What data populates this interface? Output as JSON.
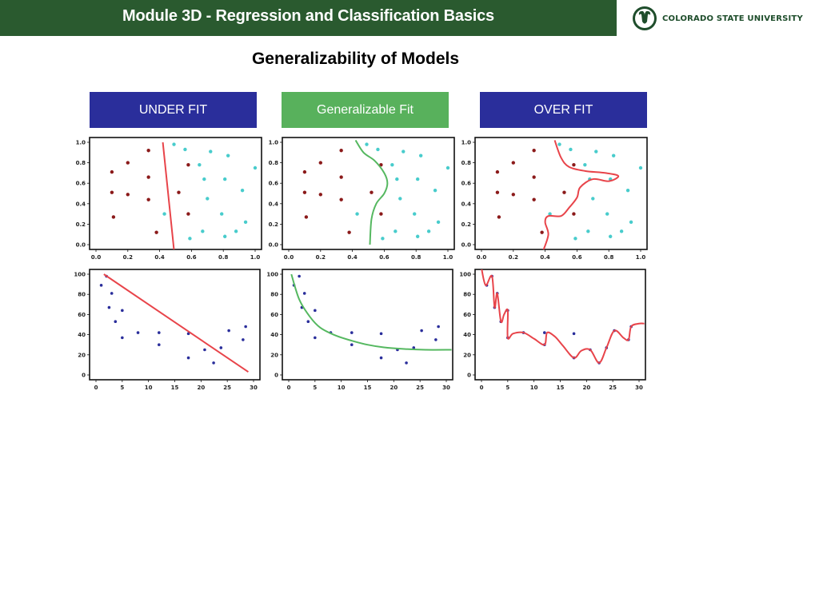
{
  "header": {
    "module_title": "Module  3D - Regression and Classification Basics"
  },
  "logo": {
    "text": "COLORADO STATE UNIVERSITY",
    "icon": "ram-head-icon",
    "color": "#1e4d2b"
  },
  "slide": {
    "title": "Generalizability of Models"
  },
  "labels": [
    {
      "text": "UNDER FIT",
      "color": "#2a2e9b"
    },
    {
      "text": "Generalizable Fit",
      "color": "#58b15c"
    },
    {
      "text": "OVER FIT",
      "color": "#2a2e9b"
    }
  ],
  "chart_data": [
    {
      "type": "scatter",
      "title": "",
      "xlabel": "",
      "ylabel": "",
      "xlim": [
        0,
        1
      ],
      "ylim": [
        0,
        1
      ],
      "xticks": [
        0.0,
        0.2,
        0.4,
        0.6,
        0.8,
        1.0
      ],
      "yticks": [
        0.0,
        0.2,
        0.4,
        0.6,
        0.8,
        1.0
      ],
      "series": [
        {
          "color": "#8b1a1a",
          "points": [
            [
              0.1,
              0.71
            ],
            [
              0.1,
              0.51
            ],
            [
              0.11,
              0.27
            ],
            [
              0.2,
              0.8
            ],
            [
              0.2,
              0.49
            ],
            [
              0.33,
              0.92
            ],
            [
              0.33,
              0.66
            ],
            [
              0.33,
              0.44
            ],
            [
              0.38,
              0.12
            ],
            [
              0.52,
              0.51
            ],
            [
              0.58,
              0.78
            ],
            [
              0.58,
              0.3
            ]
          ]
        },
        {
          "color": "#48cccc",
          "points": [
            [
              0.43,
              0.3
            ],
            [
              0.49,
              0.98
            ],
            [
              0.56,
              0.93
            ],
            [
              0.59,
              0.06
            ],
            [
              0.65,
              0.78
            ],
            [
              0.67,
              0.13
            ],
            [
              0.68,
              0.64
            ],
            [
              0.7,
              0.45
            ],
            [
              0.72,
              0.91
            ],
            [
              0.79,
              0.3
            ],
            [
              0.81,
              0.08
            ],
            [
              0.81,
              0.64
            ],
            [
              0.83,
              0.87
            ],
            [
              0.88,
              0.13
            ],
            [
              0.92,
              0.53
            ],
            [
              0.94,
              0.22
            ],
            [
              1.0,
              0.75
            ]
          ]
        }
      ],
      "fit_line": {
        "color": "#e8444a",
        "points": [
          [
            0.42,
            1.0
          ],
          [
            0.49,
            -0.05
          ]
        ]
      }
    },
    {
      "type": "scatter",
      "title": "",
      "xlabel": "",
      "ylabel": "",
      "xlim": [
        0,
        1
      ],
      "ylim": [
        0,
        1
      ],
      "xticks": [
        0.0,
        0.2,
        0.4,
        0.6,
        0.8,
        1.0
      ],
      "yticks": [
        0.0,
        0.2,
        0.4,
        0.6,
        0.8,
        1.0
      ],
      "series": [
        {
          "color": "#8b1a1a",
          "points": [
            [
              0.1,
              0.71
            ],
            [
              0.1,
              0.51
            ],
            [
              0.11,
              0.27
            ],
            [
              0.2,
              0.8
            ],
            [
              0.2,
              0.49
            ],
            [
              0.33,
              0.92
            ],
            [
              0.33,
              0.66
            ],
            [
              0.33,
              0.44
            ],
            [
              0.38,
              0.12
            ],
            [
              0.52,
              0.51
            ],
            [
              0.58,
              0.78
            ],
            [
              0.58,
              0.3
            ]
          ]
        },
        {
          "color": "#48cccc",
          "points": [
            [
              0.43,
              0.3
            ],
            [
              0.49,
              0.98
            ],
            [
              0.56,
              0.93
            ],
            [
              0.59,
              0.06
            ],
            [
              0.65,
              0.78
            ],
            [
              0.67,
              0.13
            ],
            [
              0.68,
              0.64
            ],
            [
              0.7,
              0.45
            ],
            [
              0.72,
              0.91
            ],
            [
              0.79,
              0.3
            ],
            [
              0.81,
              0.08
            ],
            [
              0.81,
              0.64
            ],
            [
              0.83,
              0.87
            ],
            [
              0.88,
              0.13
            ],
            [
              0.92,
              0.53
            ],
            [
              0.94,
              0.22
            ],
            [
              1.0,
              0.75
            ]
          ]
        }
      ],
      "fit_line": {
        "color": "#55b860",
        "points": [
          [
            0.42,
            1.02
          ],
          [
            0.47,
            0.9
          ],
          [
            0.54,
            0.82
          ],
          [
            0.6,
            0.7
          ],
          [
            0.62,
            0.6
          ],
          [
            0.6,
            0.5
          ],
          [
            0.55,
            0.4
          ],
          [
            0.52,
            0.25
          ],
          [
            0.51,
            0.0
          ]
        ]
      }
    },
    {
      "type": "scatter",
      "title": "",
      "xlabel": "",
      "ylabel": "",
      "xlim": [
        0,
        1
      ],
      "ylim": [
        0,
        1
      ],
      "xticks": [
        0.0,
        0.2,
        0.4,
        0.6,
        0.8,
        1.0
      ],
      "yticks": [
        0.0,
        0.2,
        0.4,
        0.6,
        0.8,
        1.0
      ],
      "series": [
        {
          "color": "#8b1a1a",
          "points": [
            [
              0.1,
              0.71
            ],
            [
              0.1,
              0.51
            ],
            [
              0.11,
              0.27
            ],
            [
              0.2,
              0.8
            ],
            [
              0.2,
              0.49
            ],
            [
              0.33,
              0.92
            ],
            [
              0.33,
              0.66
            ],
            [
              0.33,
              0.44
            ],
            [
              0.38,
              0.12
            ],
            [
              0.52,
              0.51
            ],
            [
              0.58,
              0.78
            ],
            [
              0.58,
              0.3
            ]
          ]
        },
        {
          "color": "#48cccc",
          "points": [
            [
              0.43,
              0.3
            ],
            [
              0.49,
              0.98
            ],
            [
              0.56,
              0.93
            ],
            [
              0.59,
              0.06
            ],
            [
              0.65,
              0.78
            ],
            [
              0.67,
              0.13
            ],
            [
              0.68,
              0.64
            ],
            [
              0.7,
              0.45
            ],
            [
              0.72,
              0.91
            ],
            [
              0.79,
              0.3
            ],
            [
              0.81,
              0.08
            ],
            [
              0.81,
              0.64
            ],
            [
              0.83,
              0.87
            ],
            [
              0.88,
              0.13
            ],
            [
              0.92,
              0.53
            ],
            [
              0.94,
              0.22
            ],
            [
              1.0,
              0.75
            ]
          ]
        }
      ],
      "fit_line": {
        "color": "#e8444a",
        "points": [
          [
            0.46,
            1.02
          ],
          [
            0.5,
            0.85
          ],
          [
            0.55,
            0.76
          ],
          [
            0.65,
            0.72
          ],
          [
            0.78,
            0.7
          ],
          [
            0.86,
            0.67
          ],
          [
            0.8,
            0.62
          ],
          [
            0.7,
            0.64
          ],
          [
            0.62,
            0.56
          ],
          [
            0.6,
            0.46
          ],
          [
            0.55,
            0.36
          ],
          [
            0.5,
            0.28
          ],
          [
            0.42,
            0.28
          ],
          [
            0.4,
            0.22
          ],
          [
            0.42,
            0.1
          ],
          [
            0.39,
            -0.05
          ]
        ]
      }
    },
    {
      "type": "scatter",
      "title": "",
      "xlabel": "",
      "ylabel": "",
      "xlim": [
        0,
        30
      ],
      "ylim": [
        0,
        100
      ],
      "xticks": [
        0,
        5,
        10,
        15,
        20,
        25,
        30
      ],
      "yticks": [
        0,
        20,
        40,
        60,
        80,
        100
      ],
      "series": [
        {
          "color": "#2a2e9b",
          "points": [
            [
              1,
              89
            ],
            [
              2,
              98
            ],
            [
              2.5,
              67
            ],
            [
              3,
              81
            ],
            [
              3.7,
              53
            ],
            [
              5,
              64
            ],
            [
              5,
              37
            ],
            [
              8,
              42
            ],
            [
              12,
              30
            ],
            [
              12,
              42
            ],
            [
              17.6,
              17
            ],
            [
              17.6,
              41
            ],
            [
              20.7,
              25
            ],
            [
              22.4,
              12
            ],
            [
              23.8,
              27
            ],
            [
              25.3,
              44
            ],
            [
              28,
              35
            ],
            [
              28.5,
              48
            ]
          ]
        }
      ],
      "fit_line": {
        "color": "#e8444a",
        "points": [
          [
            1.5,
            100
          ],
          [
            29,
            3
          ]
        ]
      }
    },
    {
      "type": "scatter",
      "title": "",
      "xlabel": "",
      "ylabel": "",
      "xlim": [
        0,
        30
      ],
      "ylim": [
        0,
        100
      ],
      "xticks": [
        0,
        5,
        10,
        15,
        20,
        25,
        30
      ],
      "yticks": [
        0,
        20,
        40,
        60,
        80,
        100
      ],
      "series": [
        {
          "color": "#2a2e9b",
          "points": [
            [
              1,
              89
            ],
            [
              2,
              98
            ],
            [
              2.5,
              67
            ],
            [
              3,
              81
            ],
            [
              3.7,
              53
            ],
            [
              5,
              64
            ],
            [
              5,
              37
            ],
            [
              8,
              42
            ],
            [
              12,
              30
            ],
            [
              12,
              42
            ],
            [
              17.6,
              17
            ],
            [
              17.6,
              41
            ],
            [
              20.7,
              25
            ],
            [
              22.4,
              12
            ],
            [
              23.8,
              27
            ],
            [
              25.3,
              44
            ],
            [
              28,
              35
            ],
            [
              28.5,
              48
            ]
          ]
        }
      ],
      "fit_line": {
        "color": "#55b860",
        "points": [
          [
            0.5,
            100
          ],
          [
            2,
            75
          ],
          [
            4,
            58
          ],
          [
            6,
            47
          ],
          [
            9,
            39
          ],
          [
            12,
            34
          ],
          [
            15,
            30
          ],
          [
            18,
            27.5
          ],
          [
            22,
            25.8
          ],
          [
            26,
            25
          ],
          [
            31,
            25
          ]
        ]
      }
    },
    {
      "type": "scatter",
      "title": "",
      "xlabel": "",
      "ylabel": "",
      "xlim": [
        0,
        30
      ],
      "ylim": [
        0,
        100
      ],
      "xticks": [
        0,
        5,
        10,
        15,
        20,
        25,
        30
      ],
      "yticks": [
        0,
        20,
        40,
        60,
        80,
        100
      ],
      "series": [
        {
          "color": "#2a2e9b",
          "points": [
            [
              1,
              89
            ],
            [
              2,
              98
            ],
            [
              2.5,
              67
            ],
            [
              3,
              81
            ],
            [
              3.7,
              53
            ],
            [
              5,
              64
            ],
            [
              5,
              37
            ],
            [
              8,
              42
            ],
            [
              12,
              30
            ],
            [
              12,
              42
            ],
            [
              17.6,
              17
            ],
            [
              17.6,
              41
            ],
            [
              20.7,
              25
            ],
            [
              22.4,
              12
            ],
            [
              23.8,
              27
            ],
            [
              25.3,
              44
            ],
            [
              28,
              35
            ],
            [
              28.5,
              48
            ]
          ]
        }
      ],
      "fit_line": {
        "color": "#e8444a",
        "points": [
          [
            0,
            106
          ],
          [
            0.8,
            89
          ],
          [
            2,
            98
          ],
          [
            2.5,
            67
          ],
          [
            3,
            81
          ],
          [
            3.7,
            53
          ],
          [
            4.3,
            60
          ],
          [
            5,
            64
          ],
          [
            5,
            37
          ],
          [
            6,
            41
          ],
          [
            8,
            42
          ],
          [
            10,
            36
          ],
          [
            12,
            30
          ],
          [
            12.5,
            42
          ],
          [
            14,
            38
          ],
          [
            15.5,
            29
          ],
          [
            17.6,
            17
          ],
          [
            19,
            24
          ],
          [
            20.7,
            25
          ],
          [
            22.4,
            12
          ],
          [
            23.8,
            27
          ],
          [
            25.3,
            44
          ],
          [
            27,
            37
          ],
          [
            28,
            35
          ],
          [
            28.5,
            48
          ],
          [
            30,
            51
          ],
          [
            31,
            51
          ]
        ]
      }
    }
  ]
}
